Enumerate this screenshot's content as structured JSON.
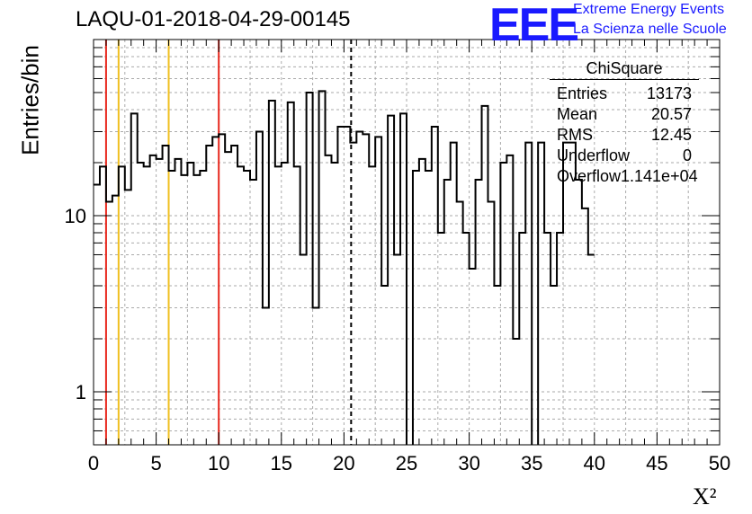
{
  "title": "LAQU-01-2018-04-29-00145",
  "logo": {
    "mark": "EEE",
    "line1": "Extreme Energy Events",
    "line2": "La Scienza nelle Scuole",
    "color": "#1a1aff"
  },
  "stats": {
    "title": "ChiSquare",
    "rows": [
      {
        "label": "Entries",
        "value": "13173"
      },
      {
        "label": "Mean",
        "value": "20.57"
      },
      {
        "label": "RMS",
        "value": "12.45"
      },
      {
        "label": "Underflow",
        "value": "0"
      },
      {
        "label": "Overflow",
        "value": "1.141e+04"
      }
    ]
  },
  "chart_data": {
    "type": "histogram",
    "xlabel": "X²",
    "ylabel": "Entries/bin",
    "xlim": [
      0,
      50
    ],
    "ylim": [
      0.5,
      100
    ],
    "ylog": true,
    "grid": true,
    "bin_width": 0.5,
    "xticks": [
      0,
      5,
      10,
      15,
      20,
      25,
      30,
      35,
      40,
      45,
      50
    ],
    "xtick_labels": [
      "0",
      "5",
      "10",
      "15",
      "20",
      "25",
      "30",
      "35",
      "40",
      "45",
      "50"
    ],
    "yticks": [
      1,
      10
    ],
    "ytick_labels": [
      "1",
      "10"
    ],
    "values": [
      15,
      19,
      12,
      13,
      19,
      14,
      38,
      20,
      19,
      22,
      21,
      25,
      18,
      21,
      17,
      20,
      17,
      18,
      25,
      28,
      29,
      23,
      25,
      19,
      18,
      16,
      30,
      3,
      45,
      19,
      20,
      44,
      19,
      6,
      50,
      3,
      51,
      22,
      20,
      32,
      32,
      26,
      30,
      29,
      19,
      28,
      4,
      37,
      6,
      38,
      0,
      18,
      21,
      18,
      32,
      8,
      16,
      26,
      12,
      8,
      5,
      16,
      42,
      12,
      4,
      20,
      22,
      2,
      8,
      26,
      0,
      26,
      8,
      4,
      8,
      26,
      26,
      16,
      11,
      6
    ],
    "reference_lines": [
      {
        "x": 1,
        "color": "#e8281e",
        "style": "solid"
      },
      {
        "x": 2,
        "color": "#f0c020",
        "style": "solid"
      },
      {
        "x": 6,
        "color": "#f0c020",
        "style": "solid"
      },
      {
        "x": 10,
        "color": "#e8281e",
        "style": "solid"
      },
      {
        "x": 20.57,
        "color": "#000000",
        "style": "dashed"
      }
    ],
    "line_color": "#000000",
    "grid_color": "#aaaaaa"
  }
}
